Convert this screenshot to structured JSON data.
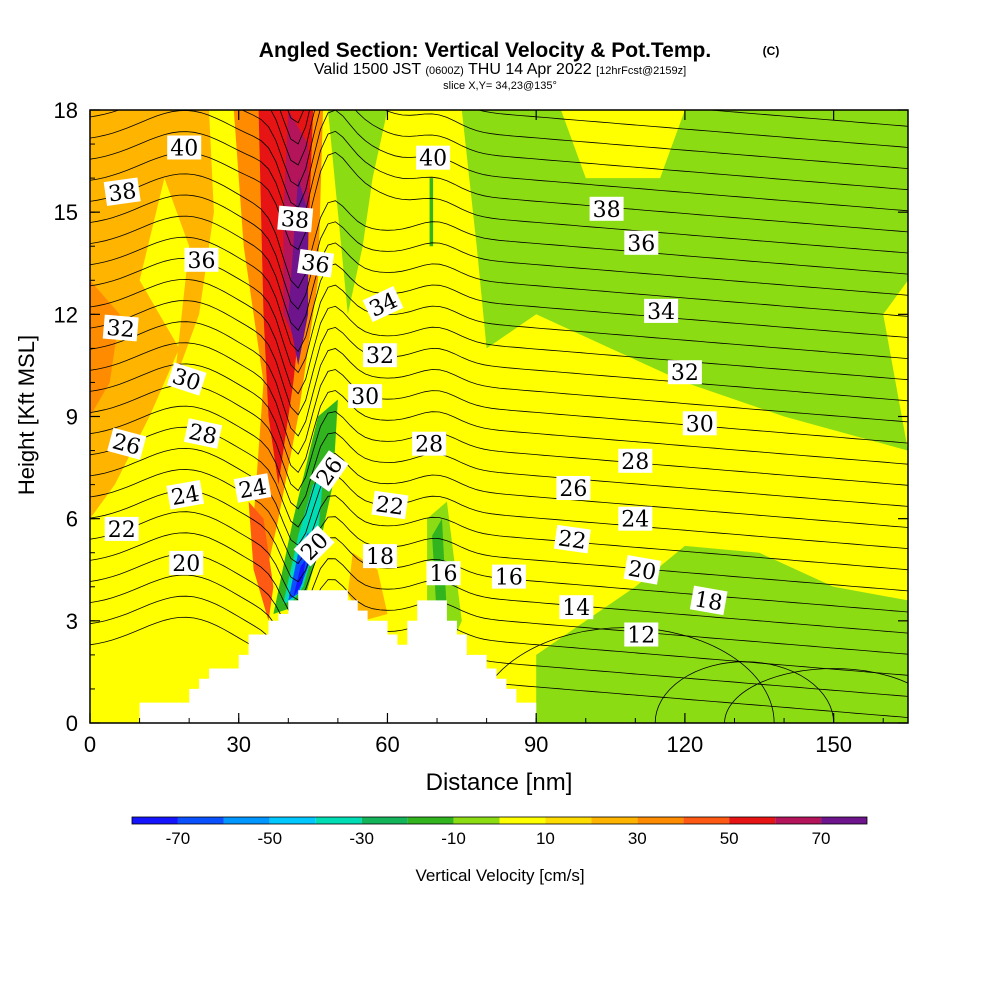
{
  "header": {
    "title_main": "Angled Section: Vertical Velocity & Pot.Temp.",
    "title_mark": "(C)",
    "valid_prefix": "Valid 1500 JST",
    "valid_zulu": "(0600Z)",
    "valid_date": "THU 14 Apr 2022",
    "valid_fcst": "[12hrFcst@2159z]",
    "slice": "slice X,Y= 34,23@135°"
  },
  "chart_data": {
    "type": "heatmap",
    "title": "Angled Section: Vertical Velocity & Pot.Temp.",
    "xlabel": "Distance [nm]",
    "ylabel": "Height [Kft MSL]",
    "xlim": [
      0,
      165
    ],
    "ylim": [
      0,
      18
    ],
    "x_ticks": [
      0,
      30,
      60,
      90,
      120,
      150
    ],
    "y_ticks": [
      0,
      3,
      6,
      9,
      12,
      15,
      18
    ],
    "colorbar": {
      "label": "Vertical Velocity [cm/s]",
      "tick_labels": [
        -70,
        -50,
        -30,
        -10,
        10,
        30,
        50,
        70
      ],
      "bins": [
        {
          "min": -80,
          "max": -70,
          "color": "#1414ff"
        },
        {
          "min": -70,
          "max": -60,
          "color": "#0a50ff"
        },
        {
          "min": -60,
          "max": -50,
          "color": "#0096ff"
        },
        {
          "min": -50,
          "max": -40,
          "color": "#00c8ff"
        },
        {
          "min": -40,
          "max": -30,
          "color": "#00dcb4"
        },
        {
          "min": -30,
          "max": -20,
          "color": "#14b45a"
        },
        {
          "min": -20,
          "max": -10,
          "color": "#32b41e"
        },
        {
          "min": -10,
          "max": 0,
          "color": "#8cdc14"
        },
        {
          "min": 0,
          "max": 10,
          "color": "#ffff00"
        },
        {
          "min": 10,
          "max": 20,
          "color": "#ffdc00"
        },
        {
          "min": 20,
          "max": 30,
          "color": "#ffb400"
        },
        {
          "min": 30,
          "max": 40,
          "color": "#ff8c00"
        },
        {
          "min": 40,
          "max": 50,
          "color": "#ff5a14"
        },
        {
          "min": 50,
          "max": 60,
          "color": "#e61414"
        },
        {
          "min": 60,
          "max": 70,
          "color": "#b4145a"
        },
        {
          "min": 70,
          "max": 80,
          "color": "#6e148c"
        }
      ]
    },
    "velocity_regions": [
      {
        "name": "left-updraft-broad",
        "value": 25,
        "points": [
          [
            0,
            18
          ],
          [
            12,
            18
          ],
          [
            15,
            16
          ],
          [
            10,
            13
          ],
          [
            18,
            11
          ],
          [
            12,
            9
          ],
          [
            5,
            7
          ],
          [
            0,
            6
          ]
        ]
      },
      {
        "name": "left-updraft-core",
        "value": 35,
        "points": [
          [
            0,
            13
          ],
          [
            6,
            12
          ],
          [
            4,
            10
          ],
          [
            0,
            9
          ]
        ]
      },
      {
        "name": "upper-left-orange",
        "value": 25,
        "points": [
          [
            10,
            18
          ],
          [
            24,
            18
          ],
          [
            25,
            15
          ],
          [
            22,
            12
          ],
          [
            17,
            10
          ],
          [
            20,
            14
          ]
        ]
      },
      {
        "name": "main-updraft-outer",
        "value": 35,
        "points": [
          [
            29,
            18
          ],
          [
            47,
            18
          ],
          [
            46,
            13
          ],
          [
            42,
            9
          ],
          [
            38,
            6
          ],
          [
            35,
            4
          ],
          [
            33,
            6
          ],
          [
            35,
            10
          ],
          [
            31,
            14
          ]
        ]
      },
      {
        "name": "main-updraft-mid",
        "value": 55,
        "points": [
          [
            34,
            18
          ],
          [
            45,
            18
          ],
          [
            44,
            14
          ],
          [
            41,
            10
          ],
          [
            38,
            7
          ],
          [
            36,
            9
          ],
          [
            35,
            12
          ]
        ]
      },
      {
        "name": "main-updraft-core",
        "value": 65,
        "points": [
          [
            40,
            18
          ],
          [
            44,
            17
          ],
          [
            44,
            14
          ],
          [
            42,
            11
          ],
          [
            39,
            12
          ],
          [
            39,
            15
          ]
        ]
      },
      {
        "name": "main-updraft-peak",
        "value": 75,
        "points": [
          [
            42,
            16
          ],
          [
            44,
            15
          ],
          [
            44,
            12
          ],
          [
            42,
            10.5
          ],
          [
            40,
            12
          ],
          [
            41,
            14
          ]
        ]
      },
      {
        "name": "lower-red-band",
        "value": 45,
        "points": [
          [
            32,
            6.5
          ],
          [
            35,
            6
          ],
          [
            37,
            4
          ],
          [
            36,
            3
          ],
          [
            33,
            4.5
          ]
        ]
      },
      {
        "name": "foothill-orange",
        "value": 25,
        "points": [
          [
            53,
            5
          ],
          [
            58,
            4.5
          ],
          [
            60,
            3.2
          ],
          [
            55,
            3
          ],
          [
            52,
            3.8
          ]
        ]
      },
      {
        "name": "downdraft-band-outer",
        "value": -15,
        "points": [
          [
            37,
            3.2
          ],
          [
            41,
            6
          ],
          [
            46,
            9
          ],
          [
            50,
            9.5
          ],
          [
            49,
            7
          ],
          [
            46,
            5
          ],
          [
            43,
            3.5
          ]
        ]
      },
      {
        "name": "downdraft-band-mid",
        "value": -35,
        "points": [
          [
            39,
            3.5
          ],
          [
            42,
            5.5
          ],
          [
            45,
            7
          ],
          [
            47,
            7.2
          ],
          [
            46,
            5.5
          ],
          [
            43,
            4
          ],
          [
            41,
            3.6
          ]
        ]
      },
      {
        "name": "downdraft-band-core",
        "value": -65,
        "points": [
          [
            40,
            3.6
          ],
          [
            42,
            5
          ],
          [
            44,
            5.6
          ],
          [
            45,
            5
          ],
          [
            43,
            4.2
          ],
          [
            42,
            3.8
          ]
        ]
      },
      {
        "name": "downdraft-band-peak",
        "value": -75,
        "points": [
          [
            41,
            3.7
          ],
          [
            42.5,
            4.6
          ],
          [
            43.5,
            4.8
          ],
          [
            42.8,
            4.1
          ]
        ]
      },
      {
        "name": "upper-right-sink",
        "value": -5,
        "points": [
          [
            75,
            18
          ],
          [
            95,
            18
          ],
          [
            100,
            16
          ],
          [
            115,
            16
          ],
          [
            120,
            18
          ],
          [
            165,
            18
          ],
          [
            165,
            13
          ],
          [
            160,
            12
          ],
          [
            165,
            8
          ],
          [
            140,
            9
          ],
          [
            120,
            10
          ],
          [
            105,
            11
          ],
          [
            90,
            12
          ],
          [
            80,
            11
          ],
          [
            78,
            14
          ]
        ]
      },
      {
        "name": "mid-sink-tongue",
        "value": -5,
        "points": [
          [
            48,
            18
          ],
          [
            60,
            18
          ],
          [
            57,
            16
          ],
          [
            55,
            14
          ],
          [
            52,
            12
          ],
          [
            50,
            15
          ]
        ]
      },
      {
        "name": "right-low-sink",
        "value": -5,
        "points": [
          [
            90,
            0
          ],
          [
            165,
            0
          ],
          [
            165,
            3.6
          ],
          [
            150,
            4
          ],
          [
            135,
            5
          ],
          [
            120,
            5.2
          ],
          [
            110,
            4
          ],
          [
            100,
            3
          ],
          [
            90,
            2
          ]
        ]
      },
      {
        "name": "valley-sink",
        "value": -5,
        "points": [
          [
            68,
            6
          ],
          [
            72,
            6.5
          ],
          [
            75,
            3
          ],
          [
            72,
            2
          ],
          [
            68,
            3
          ]
        ]
      },
      {
        "name": "valley-sink-core",
        "value": -15,
        "points": [
          [
            69,
            5.5
          ],
          [
            71,
            6
          ],
          [
            72,
            3.2
          ],
          [
            70,
            3
          ]
        ]
      },
      {
        "name": "thin-sink-line",
        "value": -15,
        "points": [
          [
            68.5,
            16
          ],
          [
            69.2,
            16
          ],
          [
            69.2,
            14
          ],
          [
            68.5,
            14
          ]
        ]
      }
    ],
    "terrain": [
      [
        10,
        0
      ],
      [
        10,
        0.6
      ],
      [
        20,
        0.6
      ],
      [
        20,
        1.0
      ],
      [
        22,
        1.0
      ],
      [
        22,
        1.3
      ],
      [
        24,
        1.3
      ],
      [
        24,
        1.6
      ],
      [
        30,
        1.6
      ],
      [
        30,
        2.0
      ],
      [
        32,
        2.0
      ],
      [
        32,
        2.6
      ],
      [
        36,
        2.6
      ],
      [
        36,
        3.0
      ],
      [
        38,
        3.0
      ],
      [
        38,
        3.2
      ],
      [
        40,
        3.2
      ],
      [
        40,
        3.6
      ],
      [
        42,
        3.6
      ],
      [
        42,
        3.9
      ],
      [
        52,
        3.9
      ],
      [
        52,
        3.6
      ],
      [
        54,
        3.6
      ],
      [
        54,
        3.3
      ],
      [
        56,
        3.3
      ],
      [
        56,
        3.0
      ],
      [
        60,
        3.0
      ],
      [
        60,
        2.6
      ],
      [
        62,
        2.6
      ],
      [
        62,
        2.3
      ],
      [
        64,
        2.3
      ],
      [
        64,
        3.0
      ],
      [
        66,
        3.0
      ],
      [
        66,
        3.6
      ],
      [
        72,
        3.6
      ],
      [
        72,
        3.0
      ],
      [
        74,
        3.0
      ],
      [
        74,
        2.6
      ],
      [
        76,
        2.6
      ],
      [
        76,
        2.0
      ],
      [
        80,
        2.0
      ],
      [
        80,
        1.6
      ],
      [
        82,
        1.6
      ],
      [
        82,
        1.3
      ],
      [
        84,
        1.3
      ],
      [
        84,
        1.0
      ],
      [
        86,
        1.0
      ],
      [
        86,
        0.6
      ],
      [
        90,
        0.6
      ],
      [
        90,
        0
      ]
    ],
    "theta_contour_levels": [
      12,
      13,
      14,
      15,
      16,
      17,
      18,
      19,
      20,
      21,
      22,
      23,
      24,
      25,
      26,
      27,
      28,
      29,
      30,
      31,
      32,
      33,
      34,
      35,
      36,
      37,
      38,
      39,
      40
    ],
    "contour_labels": [
      {
        "text": "40",
        "x": 19,
        "y": 16.9,
        "angle": 0
      },
      {
        "text": "38",
        "x": 6.5,
        "y": 15.6,
        "angle": -8
      },
      {
        "text": "36",
        "x": 22.5,
        "y": 13.6,
        "angle": 0
      },
      {
        "text": "32",
        "x": 6.2,
        "y": 11.6,
        "angle": 5
      },
      {
        "text": "30",
        "x": 19.5,
        "y": 10.1,
        "angle": 18
      },
      {
        "text": "28",
        "x": 22.8,
        "y": 8.5,
        "angle": 12
      },
      {
        "text": "26",
        "x": 7.4,
        "y": 8.2,
        "angle": 15
      },
      {
        "text": "24",
        "x": 19.2,
        "y": 6.7,
        "angle": -10
      },
      {
        "text": "24",
        "x": 32.8,
        "y": 6.9,
        "angle": -10
      },
      {
        "text": "22",
        "x": 6.4,
        "y": 5.7,
        "angle": 0
      },
      {
        "text": "20",
        "x": 19.4,
        "y": 4.7,
        "angle": 0
      },
      {
        "text": "38",
        "x": 41.4,
        "y": 14.8,
        "angle": 5
      },
      {
        "text": "36",
        "x": 45.5,
        "y": 13.5,
        "angle": 8
      },
      {
        "text": "34",
        "x": 59.1,
        "y": 12.3,
        "angle": -25
      },
      {
        "text": "32",
        "x": 58.5,
        "y": 10.8,
        "angle": 0
      },
      {
        "text": "30",
        "x": 55.5,
        "y": 9.6,
        "angle": 0
      },
      {
        "text": "26",
        "x": 48.2,
        "y": 7.4,
        "angle": -55
      },
      {
        "text": "20",
        "x": 45.2,
        "y": 5.2,
        "angle": -45
      },
      {
        "text": "28",
        "x": 68.4,
        "y": 8.2,
        "angle": 0
      },
      {
        "text": "22",
        "x": 60.5,
        "y": 6.4,
        "angle": 8
      },
      {
        "text": "18",
        "x": 58.5,
        "y": 4.9,
        "angle": 0
      },
      {
        "text": "16",
        "x": 71.3,
        "y": 4.4,
        "angle": 0
      },
      {
        "text": "16",
        "x": 84.5,
        "y": 4.3,
        "angle": 0
      },
      {
        "text": "40",
        "x": 69.2,
        "y": 16.6,
        "angle": 0
      },
      {
        "text": "38",
        "x": 104.2,
        "y": 15.1,
        "angle": 0
      },
      {
        "text": "36",
        "x": 111.2,
        "y": 14.1,
        "angle": 0
      },
      {
        "text": "34",
        "x": 115.2,
        "y": 12.1,
        "angle": 0
      },
      {
        "text": "32",
        "x": 120.0,
        "y": 10.3,
        "angle": 0
      },
      {
        "text": "30",
        "x": 123.0,
        "y": 8.8,
        "angle": 0
      },
      {
        "text": "28",
        "x": 110.0,
        "y": 7.7,
        "angle": 0
      },
      {
        "text": "26",
        "x": 97.5,
        "y": 6.9,
        "angle": 0
      },
      {
        "text": "24",
        "x": 110.0,
        "y": 6.0,
        "angle": 0
      },
      {
        "text": "22",
        "x": 97.3,
        "y": 5.4,
        "angle": 8
      },
      {
        "text": "20",
        "x": 111.4,
        "y": 4.5,
        "angle": 10
      },
      {
        "text": "18",
        "x": 124.8,
        "y": 3.6,
        "angle": 10
      },
      {
        "text": "14",
        "x": 98.1,
        "y": 3.4,
        "angle": 0
      },
      {
        "text": "12",
        "x": 111.2,
        "y": 2.6,
        "angle": 0
      }
    ]
  }
}
